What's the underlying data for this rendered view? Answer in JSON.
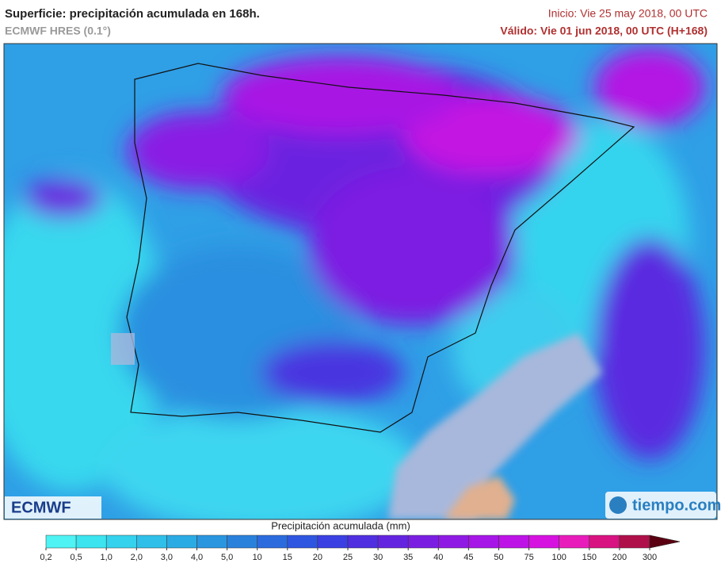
{
  "header": {
    "title": "Superficie: precipitación acumulada en 168h.",
    "model": "ECMWF HRES (0.1°)",
    "init": "Inicio: Vie 25 may 2018, 00 UTC",
    "valid": "Válido: Vie 01 jun 2018, 00 UTC (H+168)"
  },
  "logos": {
    "left": "ECMWF",
    "right": "tiempo.com"
  },
  "legend": {
    "title": "Precipitación acumulada (mm)",
    "ticks": [
      {
        "value": 0.2,
        "label": "0,2"
      },
      {
        "value": 0.5,
        "label": "0,5"
      },
      {
        "value": 1,
        "label": "1,0"
      },
      {
        "value": 2,
        "label": "2,0"
      },
      {
        "value": 3,
        "label": "3,0"
      },
      {
        "value": 4,
        "label": "4,0"
      },
      {
        "value": 5,
        "label": "5,0"
      },
      10,
      15,
      20,
      25,
      30,
      35,
      40,
      45,
      50,
      75,
      100,
      150,
      200,
      300
    ],
    "colors": [
      "#4ff3f3",
      "#3be4ef",
      "#34d2ec",
      "#2fbfe8",
      "#2babe4",
      "#2a96e0",
      "#2a81dc",
      "#2b6bde",
      "#2f56e0",
      "#3a40e2",
      "#4f2fe0",
      "#6425e0",
      "#7a1fe2",
      "#8f1ae4",
      "#a616e6",
      "#bd13e6",
      "#d612e0",
      "#e81cba",
      "#d81280",
      "#b0104a",
      "#8a0a2a",
      "#5a0010"
    ]
  }
}
